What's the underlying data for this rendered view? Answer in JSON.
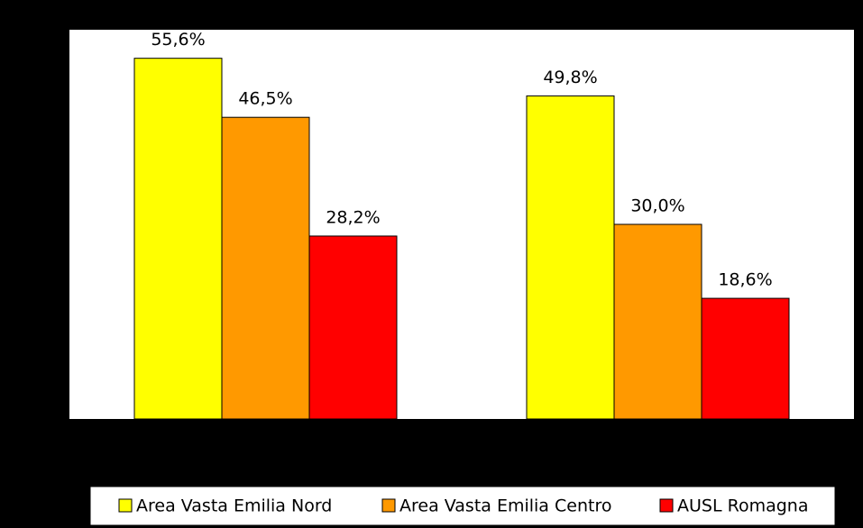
{
  "chart_data": {
    "type": "bar",
    "categories": [
      null,
      null
    ],
    "series": [
      {
        "name": "Area Vasta Emilia Nord",
        "color": "#ffff00",
        "values": [
          55.6,
          49.8
        ],
        "value_labels": [
          "55,6%",
          "49,8%"
        ]
      },
      {
        "name": "Area Vasta Emilia Centro",
        "color": "#ff9900",
        "values": [
          46.5,
          30.0
        ],
        "value_labels": [
          "46,5%",
          "30,0%"
        ]
      },
      {
        "name": "AUSL Romagna",
        "color": "#ff0000",
        "values": [
          28.2,
          18.6
        ],
        "value_labels": [
          "28,2%",
          "18,6%"
        ]
      }
    ],
    "ylim": [
      0,
      60
    ],
    "grid": false,
    "legend": "bottom"
  }
}
